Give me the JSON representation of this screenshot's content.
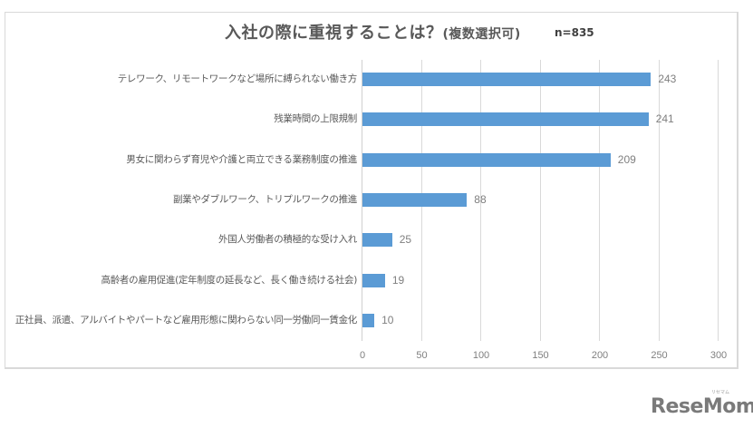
{
  "chart_data": {
    "type": "bar",
    "orientation": "horizontal",
    "title": "入社の際に重視することは？",
    "subtitle": "(複数選択可)",
    "annotation": "n=835",
    "xlabel": "",
    "ylabel": "",
    "xlim": [
      0,
      300
    ],
    "xticks": [
      0,
      50,
      100,
      150,
      200,
      250,
      300
    ],
    "grid": true,
    "legend": null,
    "bar_color": "#5b9bd5",
    "categories": [
      "テレワーク、リモートワークなど場所に縛られない働き方",
      "残業時間の上限規制",
      "男女に関わらず育児や介護と両立できる業務制度の推進",
      "副業やダブルワーク、トリプルワークの推進",
      "外国人労働者の積極的な受け入れ",
      "高齢者の雇用促進(定年制度の延長など、長く働き続ける社会)",
      "正社員、派遣、アルバイトやパートなど雇用形態に関わらない同一労働同一賃金化"
    ],
    "values": [
      243,
      241,
      209,
      88,
      25,
      19,
      10
    ]
  },
  "header": {
    "title": "入社の際に重視することは？",
    "subtitle": "(複数選択可)",
    "sample_size": "n=835"
  },
  "axis": {
    "ticks": [
      "0",
      "50",
      "100",
      "150",
      "200",
      "250",
      "300"
    ]
  },
  "rows": [
    {
      "label": "テレワーク、リモートワークなど場所に縛られない働き方",
      "value": "243"
    },
    {
      "label": "残業時間の上限規制",
      "value": "241"
    },
    {
      "label": "男女に関わらず育児や介護と両立できる業務制度の推進",
      "value": "209"
    },
    {
      "label": "副業やダブルワーク、トリプルワークの推進",
      "value": "88"
    },
    {
      "label": "外国人労働者の積極的な受け入れ",
      "value": "25"
    },
    {
      "label": "高齢者の雇用促進(定年制度の延長など、長く働き続ける社会)",
      "value": "19"
    },
    {
      "label": "正社員、派遣、アルバイトやパートなど雇用形態に関わらない同一労働同一賃金化",
      "value": "10"
    }
  ],
  "watermark": {
    "logo_text": "ReseMom",
    "ruby": "リセマム"
  }
}
